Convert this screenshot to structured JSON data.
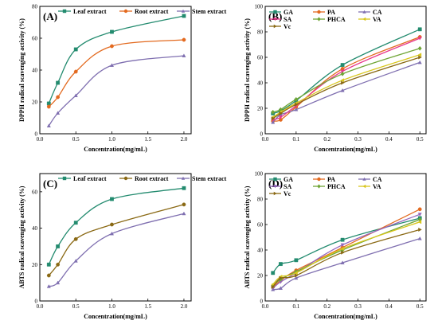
{
  "chart_data": [
    {
      "type": "line",
      "panel_label": "(A)",
      "xlabel": "Concentration(mg/mL)",
      "ylabel": "DPPH radical scavenging activity (%)",
      "xlim": [
        0,
        2.1
      ],
      "ylim": [
        0,
        80
      ],
      "xticks": [
        "0.0",
        "0.5",
        "1.0",
        "1.5",
        "2.0"
      ],
      "yticks": [
        "0",
        "20",
        "40",
        "60",
        "80"
      ],
      "legend_layout": "row-top",
      "series": [
        {
          "name": "Leaf extract",
          "color": "#238b6f",
          "marker": "square",
          "x": [
            0.125,
            0.25,
            0.5,
            1.0,
            2.0
          ],
          "y": [
            19,
            32,
            53,
            64,
            74
          ]
        },
        {
          "name": "Root extract",
          "color": "#e36a1f",
          "marker": "circle",
          "x": [
            0.125,
            0.25,
            0.5,
            1.0,
            2.0
          ],
          "y": [
            17,
            23,
            39,
            55,
            59
          ]
        },
        {
          "name": "Stem extract",
          "color": "#7f6fb0",
          "marker": "triangle",
          "x": [
            0.125,
            0.25,
            0.5,
            1.0,
            2.0
          ],
          "y": [
            5,
            13,
            24,
            43,
            49
          ]
        }
      ]
    },
    {
      "type": "line",
      "panel_label": "(B)",
      "xlabel": "Concentration(mg/mL)",
      "ylabel": "DPPH radical scavenging activity (%)",
      "xlim": [
        0,
        0.52
      ],
      "ylim": [
        0,
        100
      ],
      "xticks": [
        "0.0",
        "0.1",
        "0.2",
        "0.3",
        "0.4",
        "0.5"
      ],
      "yticks": [
        "0",
        "20",
        "40",
        "60",
        "80",
        "100"
      ],
      "legend_layout": "grid-top-left",
      "series": [
        {
          "name": "GA",
          "color": "#238b6f",
          "marker": "square",
          "x": [
            0.025,
            0.05,
            0.1,
            0.25,
            0.5
          ],
          "y": [
            16,
            18,
            26,
            54,
            82
          ]
        },
        {
          "name": "PA",
          "color": "#e36a1f",
          "marker": "circle",
          "x": [
            0.025,
            0.05,
            0.1,
            0.25,
            0.5
          ],
          "y": [
            10,
            11,
            21,
            51,
            76
          ]
        },
        {
          "name": "CA",
          "color": "#7f6fb0",
          "marker": "triangle",
          "x": [
            0.025,
            0.05,
            0.1,
            0.25,
            0.5
          ],
          "y": [
            9,
            15,
            19,
            34,
            56
          ]
        },
        {
          "name": "SA",
          "color": "#e8388c",
          "marker": "tri-down",
          "x": [
            0.025,
            0.05,
            0.1,
            0.25,
            0.5
          ],
          "y": [
            11,
            13,
            22,
            49,
            75
          ]
        },
        {
          "name": "PHCA",
          "color": "#6fa536",
          "marker": "diamond",
          "x": [
            0.025,
            0.05,
            0.1,
            0.25,
            0.5
          ],
          "y": [
            17,
            19,
            27,
            47,
            67
          ]
        },
        {
          "name": "VA",
          "color": "#d8c61c",
          "marker": "tri-left",
          "x": [
            0.025,
            0.05,
            0.1,
            0.25,
            0.5
          ],
          "y": [
            13,
            17,
            24,
            42,
            62
          ]
        },
        {
          "name": "Vc",
          "color": "#8a6914",
          "marker": "tri-right",
          "x": [
            0.025,
            0.05,
            0.1,
            0.25,
            0.5
          ],
          "y": [
            12,
            16,
            23,
            40,
            60
          ]
        }
      ]
    },
    {
      "type": "line",
      "panel_label": "(C)",
      "xlabel": "Concentration(mg/mL)",
      "ylabel": "ABTS radical scavenging activity (%)",
      "xlim": [
        0,
        2.1
      ],
      "ylim": [
        0,
        70
      ],
      "xticks": [
        "0.0",
        "0.5",
        "1.0",
        "1.5",
        "2.0"
      ],
      "yticks": [
        "0",
        "20",
        "40",
        "60"
      ],
      "legend_layout": "row-top",
      "series": [
        {
          "name": "Leaf extract",
          "color": "#238b6f",
          "marker": "square",
          "x": [
            0.125,
            0.25,
            0.5,
            1.0,
            2.0
          ],
          "y": [
            20,
            30,
            43,
            56,
            62
          ]
        },
        {
          "name": "Root extract",
          "color": "#8a6914",
          "marker": "circle",
          "x": [
            0.125,
            0.25,
            0.5,
            1.0,
            2.0
          ],
          "y": [
            14,
            20,
            34,
            42,
            53
          ]
        },
        {
          "name": "Stem extract",
          "color": "#7f6fb0",
          "marker": "triangle",
          "x": [
            0.125,
            0.25,
            0.5,
            1.0,
            2.0
          ],
          "y": [
            8,
            10,
            22,
            37,
            48
          ]
        }
      ]
    },
    {
      "type": "line",
      "panel_label": "(D)",
      "xlabel": "Concentration(mg/mL)",
      "ylabel": "ABTS radical scavenging activity (%)",
      "xlim": [
        0,
        0.52
      ],
      "ylim": [
        0,
        100
      ],
      "xticks": [
        "0.0",
        "0.1",
        "0.2",
        "0.3",
        "0.4",
        "0.5"
      ],
      "yticks": [
        "0",
        "20",
        "40",
        "60",
        "80",
        "100"
      ],
      "legend_layout": "grid-top-left",
      "series": [
        {
          "name": "GA",
          "color": "#238b6f",
          "marker": "square",
          "x": [
            0.025,
            0.05,
            0.1,
            0.25,
            0.5
          ],
          "y": [
            22,
            29,
            32,
            48,
            65
          ]
        },
        {
          "name": "PA",
          "color": "#e36a1f",
          "marker": "circle",
          "x": [
            0.025,
            0.05,
            0.1,
            0.25,
            0.5
          ],
          "y": [
            11,
            16,
            24,
            42,
            72
          ]
        },
        {
          "name": "CA",
          "color": "#7f6fb0",
          "marker": "triangle",
          "x": [
            0.025,
            0.05,
            0.1,
            0.25,
            0.5
          ],
          "y": [
            9,
            10,
            18,
            30,
            49
          ]
        },
        {
          "name": "SA",
          "color": "#9467bd",
          "marker": "tri-down",
          "x": [
            0.025,
            0.05,
            0.1,
            0.25,
            0.5
          ],
          "y": [
            10,
            15,
            22,
            44,
            68
          ]
        },
        {
          "name": "PHCA",
          "color": "#6fa536",
          "marker": "diamond",
          "x": [
            0.025,
            0.05,
            0.1,
            0.25,
            0.5
          ],
          "y": [
            12,
            17,
            23,
            40,
            64
          ]
        },
        {
          "name": "VA",
          "color": "#d8c61c",
          "marker": "tri-left",
          "x": [
            0.025,
            0.05,
            0.1,
            0.25,
            0.5
          ],
          "y": [
            13,
            19,
            22,
            41,
            62
          ]
        },
        {
          "name": "Vc",
          "color": "#8a6914",
          "marker": "tri-right",
          "x": [
            0.025,
            0.05,
            0.1,
            0.25,
            0.5
          ],
          "y": [
            11,
            18,
            20,
            38,
            56
          ]
        }
      ]
    }
  ]
}
